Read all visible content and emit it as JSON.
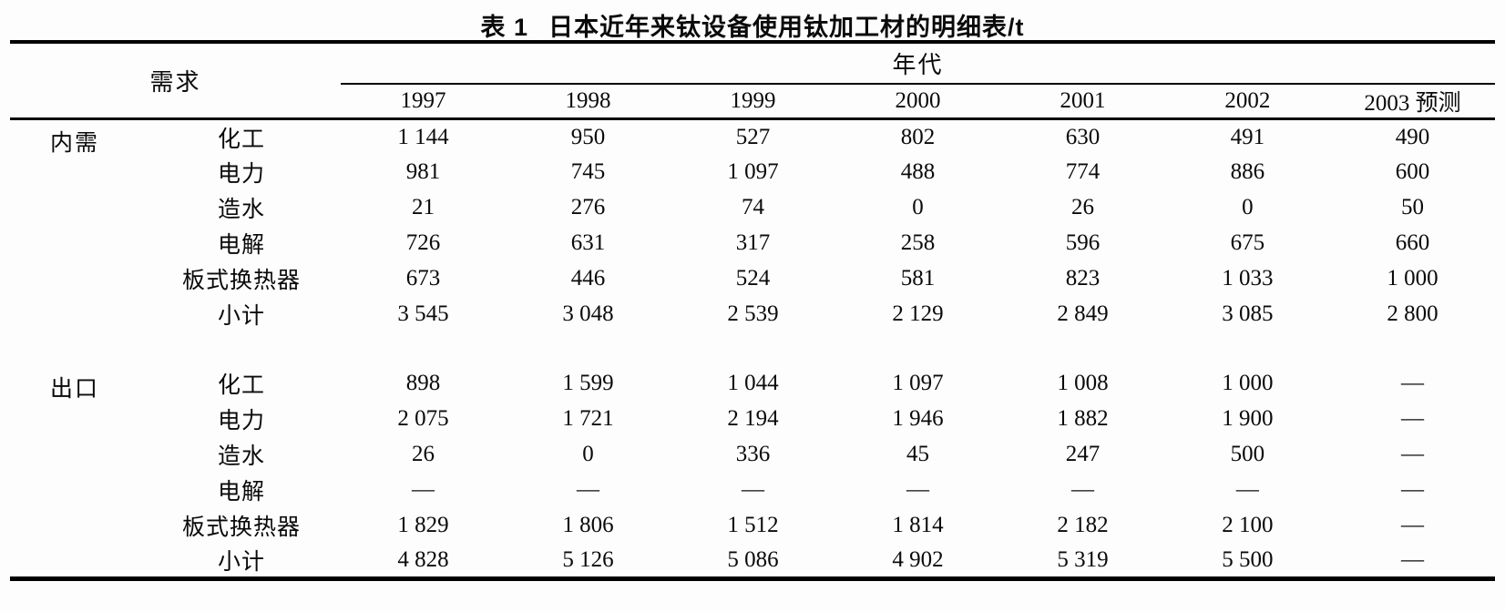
{
  "title": {
    "label": "表 1",
    "text": "日本近年来钛设备使用钛加工材的明细表/t"
  },
  "table": {
    "demand_header": "需求",
    "era_header": "年代",
    "year_columns": [
      "1997",
      "1998",
      "1999",
      "2000",
      "2001",
      "2002",
      "2003 预测"
    ],
    "sections": [
      {
        "group": "内需",
        "rows": [
          {
            "label": "化工",
            "values": [
              "1 144",
              "950",
              "527",
              "802",
              "630",
              "491",
              "490"
            ]
          },
          {
            "label": "电力",
            "values": [
              "981",
              "745",
              "1 097",
              "488",
              "774",
              "886",
              "600"
            ]
          },
          {
            "label": "造水",
            "values": [
              "21",
              "276",
              "74",
              "0",
              "26",
              "0",
              "50"
            ]
          },
          {
            "label": "电解",
            "values": [
              "726",
              "631",
              "317",
              "258",
              "596",
              "675",
              "660"
            ]
          },
          {
            "label": "板式换热器",
            "values": [
              "673",
              "446",
              "524",
              "581",
              "823",
              "1 033",
              "1 000"
            ]
          },
          {
            "label": "小计",
            "values": [
              "3 545",
              "3 048",
              "2 539",
              "2 129",
              "2 849",
              "3 085",
              "2 800"
            ]
          }
        ]
      },
      {
        "group": "出口",
        "rows": [
          {
            "label": "化工",
            "values": [
              "898",
              "1 599",
              "1 044",
              "1 097",
              "1 008",
              "1 000",
              "—"
            ]
          },
          {
            "label": "电力",
            "values": [
              "2 075",
              "1 721",
              "2 194",
              "1 946",
              "1 882",
              "1 900",
              "—"
            ]
          },
          {
            "label": "造水",
            "values": [
              "26",
              "0",
              "336",
              "45",
              "247",
              "500",
              "—"
            ]
          },
          {
            "label": "电解",
            "values": [
              "—",
              "—",
              "—",
              "—",
              "—",
              "—",
              "—"
            ]
          },
          {
            "label": "板式换热器",
            "values": [
              "1 829",
              "1 806",
              "1 512",
              "1 814",
              "2 182",
              "2 100",
              "—"
            ]
          },
          {
            "label": "小计",
            "values": [
              "4 828",
              "5 126",
              "5 086",
              "4 902",
              "5 319",
              "5 500",
              "—"
            ]
          }
        ]
      }
    ]
  },
  "chart_data": {
    "type": "table",
    "title": "表 1 日本近年来钛设备使用钛加工材的明细表/t",
    "unit": "t",
    "columns": [
      "1997",
      "1998",
      "1999",
      "2000",
      "2001",
      "2002",
      "2003 预测"
    ],
    "series": [
      {
        "group": "内需",
        "name": "化工",
        "values": [
          1144,
          950,
          527,
          802,
          630,
          491,
          490
        ]
      },
      {
        "group": "内需",
        "name": "电力",
        "values": [
          981,
          745,
          1097,
          488,
          774,
          886,
          600
        ]
      },
      {
        "group": "内需",
        "name": "造水",
        "values": [
          21,
          276,
          74,
          0,
          26,
          0,
          50
        ]
      },
      {
        "group": "内需",
        "name": "电解",
        "values": [
          726,
          631,
          317,
          258,
          596,
          675,
          660
        ]
      },
      {
        "group": "内需",
        "name": "板式换热器",
        "values": [
          673,
          446,
          524,
          581,
          823,
          1033,
          1000
        ]
      },
      {
        "group": "内需",
        "name": "小计",
        "values": [
          3545,
          3048,
          2539,
          2129,
          2849,
          3085,
          2800
        ]
      },
      {
        "group": "出口",
        "name": "化工",
        "values": [
          898,
          1599,
          1044,
          1097,
          1008,
          1000,
          null
        ]
      },
      {
        "group": "出口",
        "name": "电力",
        "values": [
          2075,
          1721,
          2194,
          1946,
          1882,
          1900,
          null
        ]
      },
      {
        "group": "出口",
        "name": "造水",
        "values": [
          26,
          0,
          336,
          45,
          247,
          500,
          null
        ]
      },
      {
        "group": "出口",
        "name": "电解",
        "values": [
          null,
          null,
          null,
          null,
          null,
          null,
          null
        ]
      },
      {
        "group": "出口",
        "name": "板式换热器",
        "values": [
          1829,
          1806,
          1512,
          1814,
          2182,
          2100,
          null
        ]
      },
      {
        "group": "出口",
        "name": "小计",
        "values": [
          4828,
          5126,
          5086,
          4902,
          5319,
          5500,
          null
        ]
      }
    ]
  }
}
